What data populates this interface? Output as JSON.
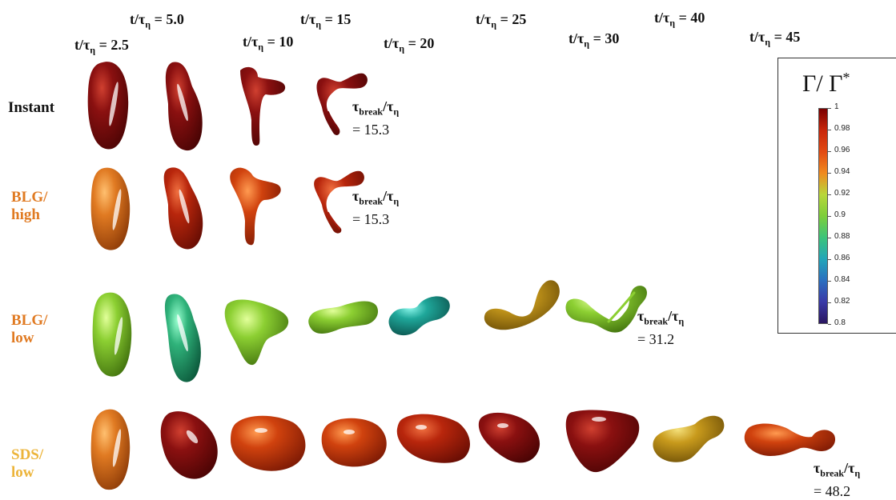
{
  "time_labels": [
    {
      "prefix": "t/τ",
      "sub": "η",
      "value": "= 2.5"
    },
    {
      "prefix": "t/τ",
      "sub": "η",
      "value": "= 5.0"
    },
    {
      "prefix": "t/τ",
      "sub": "η",
      "value": "= 10"
    },
    {
      "prefix": "t/τ",
      "sub": "η",
      "value": "= 15"
    },
    {
      "prefix": "t/τ",
      "sub": "η",
      "value": "= 20"
    },
    {
      "prefix": "t/τ",
      "sub": "η",
      "value": "= 25"
    },
    {
      "prefix": "t/τ",
      "sub": "η",
      "value": "= 30"
    },
    {
      "prefix": "t/τ",
      "sub": "η",
      "value": "= 40"
    },
    {
      "prefix": "t/τ",
      "sub": "η",
      "value": "= 45"
    }
  ],
  "rows": [
    {
      "label_lines": [
        "Instant"
      ],
      "label_color": "#111111",
      "break_value": "= 15.3"
    },
    {
      "label_lines": [
        "BLG/",
        "high"
      ],
      "label_color": "#e07a22",
      "break_value": "= 15.3"
    },
    {
      "label_lines": [
        "BLG/",
        "low"
      ],
      "label_color": "#e07a22",
      "break_value": "= 31.2"
    },
    {
      "label_lines": [
        "SDS/",
        "low"
      ],
      "label_color": "#ecb43a",
      "break_value": "= 48.2"
    }
  ],
  "break_label": {
    "tau": "τ",
    "sub1": "break",
    "slash": "/τ",
    "sub2": "η"
  },
  "colorbar": {
    "title": "Γ/ Γ",
    "title_sup": "*",
    "ticks": [
      "1",
      "0.98",
      "0.96",
      "0.94",
      "0.92",
      "0.9",
      "0.88",
      "0.86",
      "0.84",
      "0.82",
      "0.8"
    ],
    "range": [
      0.8,
      1.0
    ]
  },
  "colors": {
    "dark_red": "#7a0a0a",
    "red": "#a81c0c",
    "orange_red": "#c8380e",
    "orange": "#e07a22",
    "gold": "#c89a1c",
    "lime": "#8ccf32",
    "green_teal": "#2fb27a",
    "teal": "#1fa79a"
  }
}
